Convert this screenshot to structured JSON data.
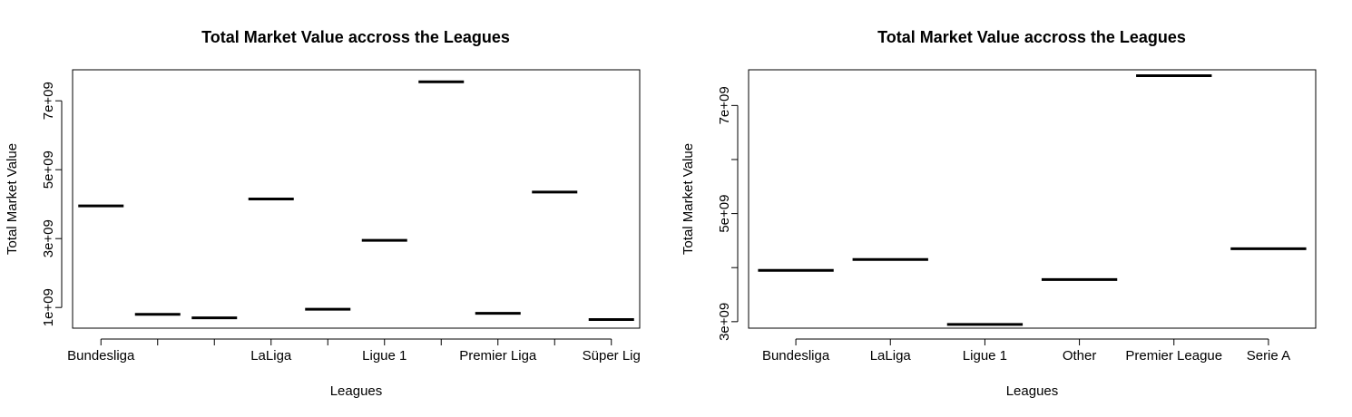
{
  "chart_data": [
    {
      "type": "boxplot",
      "title": "Total Market Value accross the Leagues",
      "xlabel": "Leagues",
      "ylabel": "Total Market Value",
      "categories": [
        "Bundesliga",
        "",
        "",
        "LaLiga",
        "",
        "Ligue 1",
        "",
        "Premier Liga",
        "",
        "Süper Lig"
      ],
      "values": [
        3950000000.0,
        800000000.0,
        700000000.0,
        4150000000.0,
        950000000.0,
        2950000000.0,
        7550000000.0,
        830000000.0,
        4350000000.0,
        650000000.0
      ],
      "yticks": [
        1000000000.0,
        3000000000.0,
        5000000000.0,
        7000000000.0
      ],
      "ytick_labels": [
        "1e+09",
        "3e+09",
        "5e+09",
        "7e+09"
      ],
      "ylim": [
        400000000.0,
        7900000000.0
      ]
    },
    {
      "type": "boxplot",
      "title": "Total Market Value accross the Leagues",
      "xlabel": "Leagues",
      "ylabel": "Total Market Value",
      "categories": [
        "Bundesliga",
        "LaLiga",
        "Ligue 1",
        "Other",
        "Premier League",
        "Serie A"
      ],
      "values": [
        3950000000.0,
        4150000000.0,
        2950000000.0,
        3780000000.0,
        7550000000.0,
        4350000000.0
      ],
      "yticks": [
        3000000000.0,
        4000000000.0,
        5000000000.0,
        6000000000.0,
        7000000000.0
      ],
      "ytick_labels": [
        "3e+09",
        "",
        "5e+09",
        "",
        "7e+09"
      ],
      "ylim": [
        2880000000.0,
        7660000000.0
      ]
    }
  ]
}
